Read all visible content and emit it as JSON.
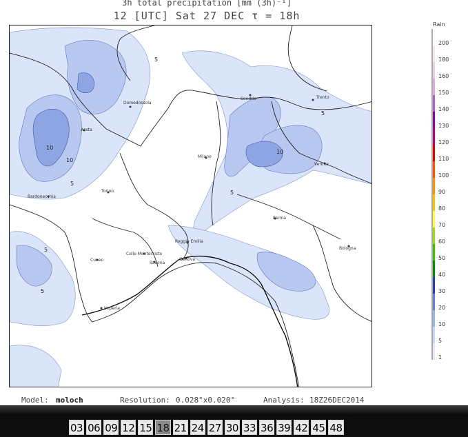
{
  "title_line1": "3h total precipitation [mm (3h)⁻¹]",
  "title_line2": "12 [UTC] Sat 27 DEC   τ = 18h",
  "map": {
    "cities": [
      {
        "name": "Domodossola"
      },
      {
        "name": "Sondrio"
      },
      {
        "name": "Trento"
      },
      {
        "name": "Aosta"
      },
      {
        "name": "Milano"
      },
      {
        "name": "Verona"
      },
      {
        "name": "Torino"
      },
      {
        "name": "Bardonecchia"
      },
      {
        "name": "Parma"
      },
      {
        "name": "Reggio Emilia"
      },
      {
        "name": "Bologna"
      },
      {
        "name": "Cuneo"
      },
      {
        "name": "Colle Montecristo"
      },
      {
        "name": "Savona"
      },
      {
        "name": "Genova"
      },
      {
        "name": "Imperia"
      }
    ],
    "contour_labels": [
      "5",
      "10",
      "10",
      "5",
      "10",
      "5",
      "5",
      "5",
      "5"
    ]
  },
  "legend": {
    "title": "Rain",
    "ticks": [
      "200",
      "180",
      "160",
      "150",
      "140",
      "130",
      "120",
      "110",
      "100",
      "90",
      "80",
      "70",
      "60",
      "50",
      "40",
      "30",
      "20",
      "10",
      "5",
      "1"
    ],
    "colors": [
      "#ffffff",
      "#f5e6f0",
      "#e8cde3",
      "#d8b0dc",
      "#b060c8",
      "#9000b0",
      "#c00080",
      "#e00000",
      "#ff5000",
      "#ff9000",
      "#ffc000",
      "#ffff40",
      "#a0e000",
      "#40c000",
      "#009000",
      "#2040c0",
      "#6080e0",
      "#9ab0f0",
      "#c8d6f6",
      "#e4ecfc"
    ]
  },
  "footer": {
    "model_label": "Model:",
    "model_value": "moloch",
    "resolution_label": "Resolution:",
    "resolution_value": "0.028°x0.020°",
    "analysis_label": "Analysis:",
    "analysis_value": "18Z26DEC2014"
  },
  "steps": [
    "03",
    "06",
    "09",
    "12",
    "15",
    "18",
    "21",
    "24",
    "27",
    "30",
    "33",
    "36",
    "39",
    "42",
    "45",
    "48"
  ],
  "active_step": "18"
}
